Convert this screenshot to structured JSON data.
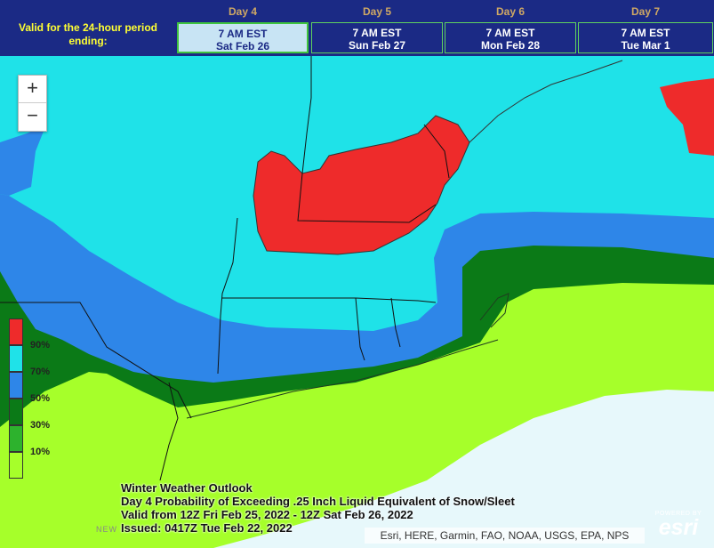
{
  "header": {
    "valid_label": "Valid for the 24-hour period ending:",
    "days": [
      {
        "name": "Day 4",
        "time": "7 AM EST",
        "date": "Sat Feb 26",
        "active": true
      },
      {
        "name": "Day 5",
        "time": "7 AM EST",
        "date": "Sun Feb 27",
        "active": false
      },
      {
        "name": "Day 6",
        "time": "7 AM EST",
        "date": "Mon Feb 28",
        "active": false
      },
      {
        "name": "Day 7",
        "time": "7 AM EST",
        "date": "Tue Mar 1",
        "active": false
      }
    ]
  },
  "map": {
    "zoom_in": "+",
    "zoom_out": "−",
    "place_label": "NEW"
  },
  "legend": {
    "ticks": [
      "90%",
      "70%",
      "50%",
      "30%",
      "10%"
    ],
    "colors": [
      "#ee2b2b",
      "#1fe2e8",
      "#2e86e8",
      "#0b7a17",
      "#2db22d",
      "#a6ff2a"
    ]
  },
  "title": {
    "line1": "Winter Weather Outlook",
    "line2": "Day 4 Probability of Exceeding .25 Inch Liquid Equivalent of Snow/Sleet",
    "line3": "Valid from 12Z Fri Feb 25, 2022 - 12Z Sat Feb 26, 2022",
    "line4": "Issued: 0417Z Tue Feb 22, 2022"
  },
  "attribution": "Esri, HERE, Garmin, FAO, NOAA, USGS, EPA, NPS",
  "esri": {
    "powered": "POWERED BY",
    "word": "esri"
  }
}
